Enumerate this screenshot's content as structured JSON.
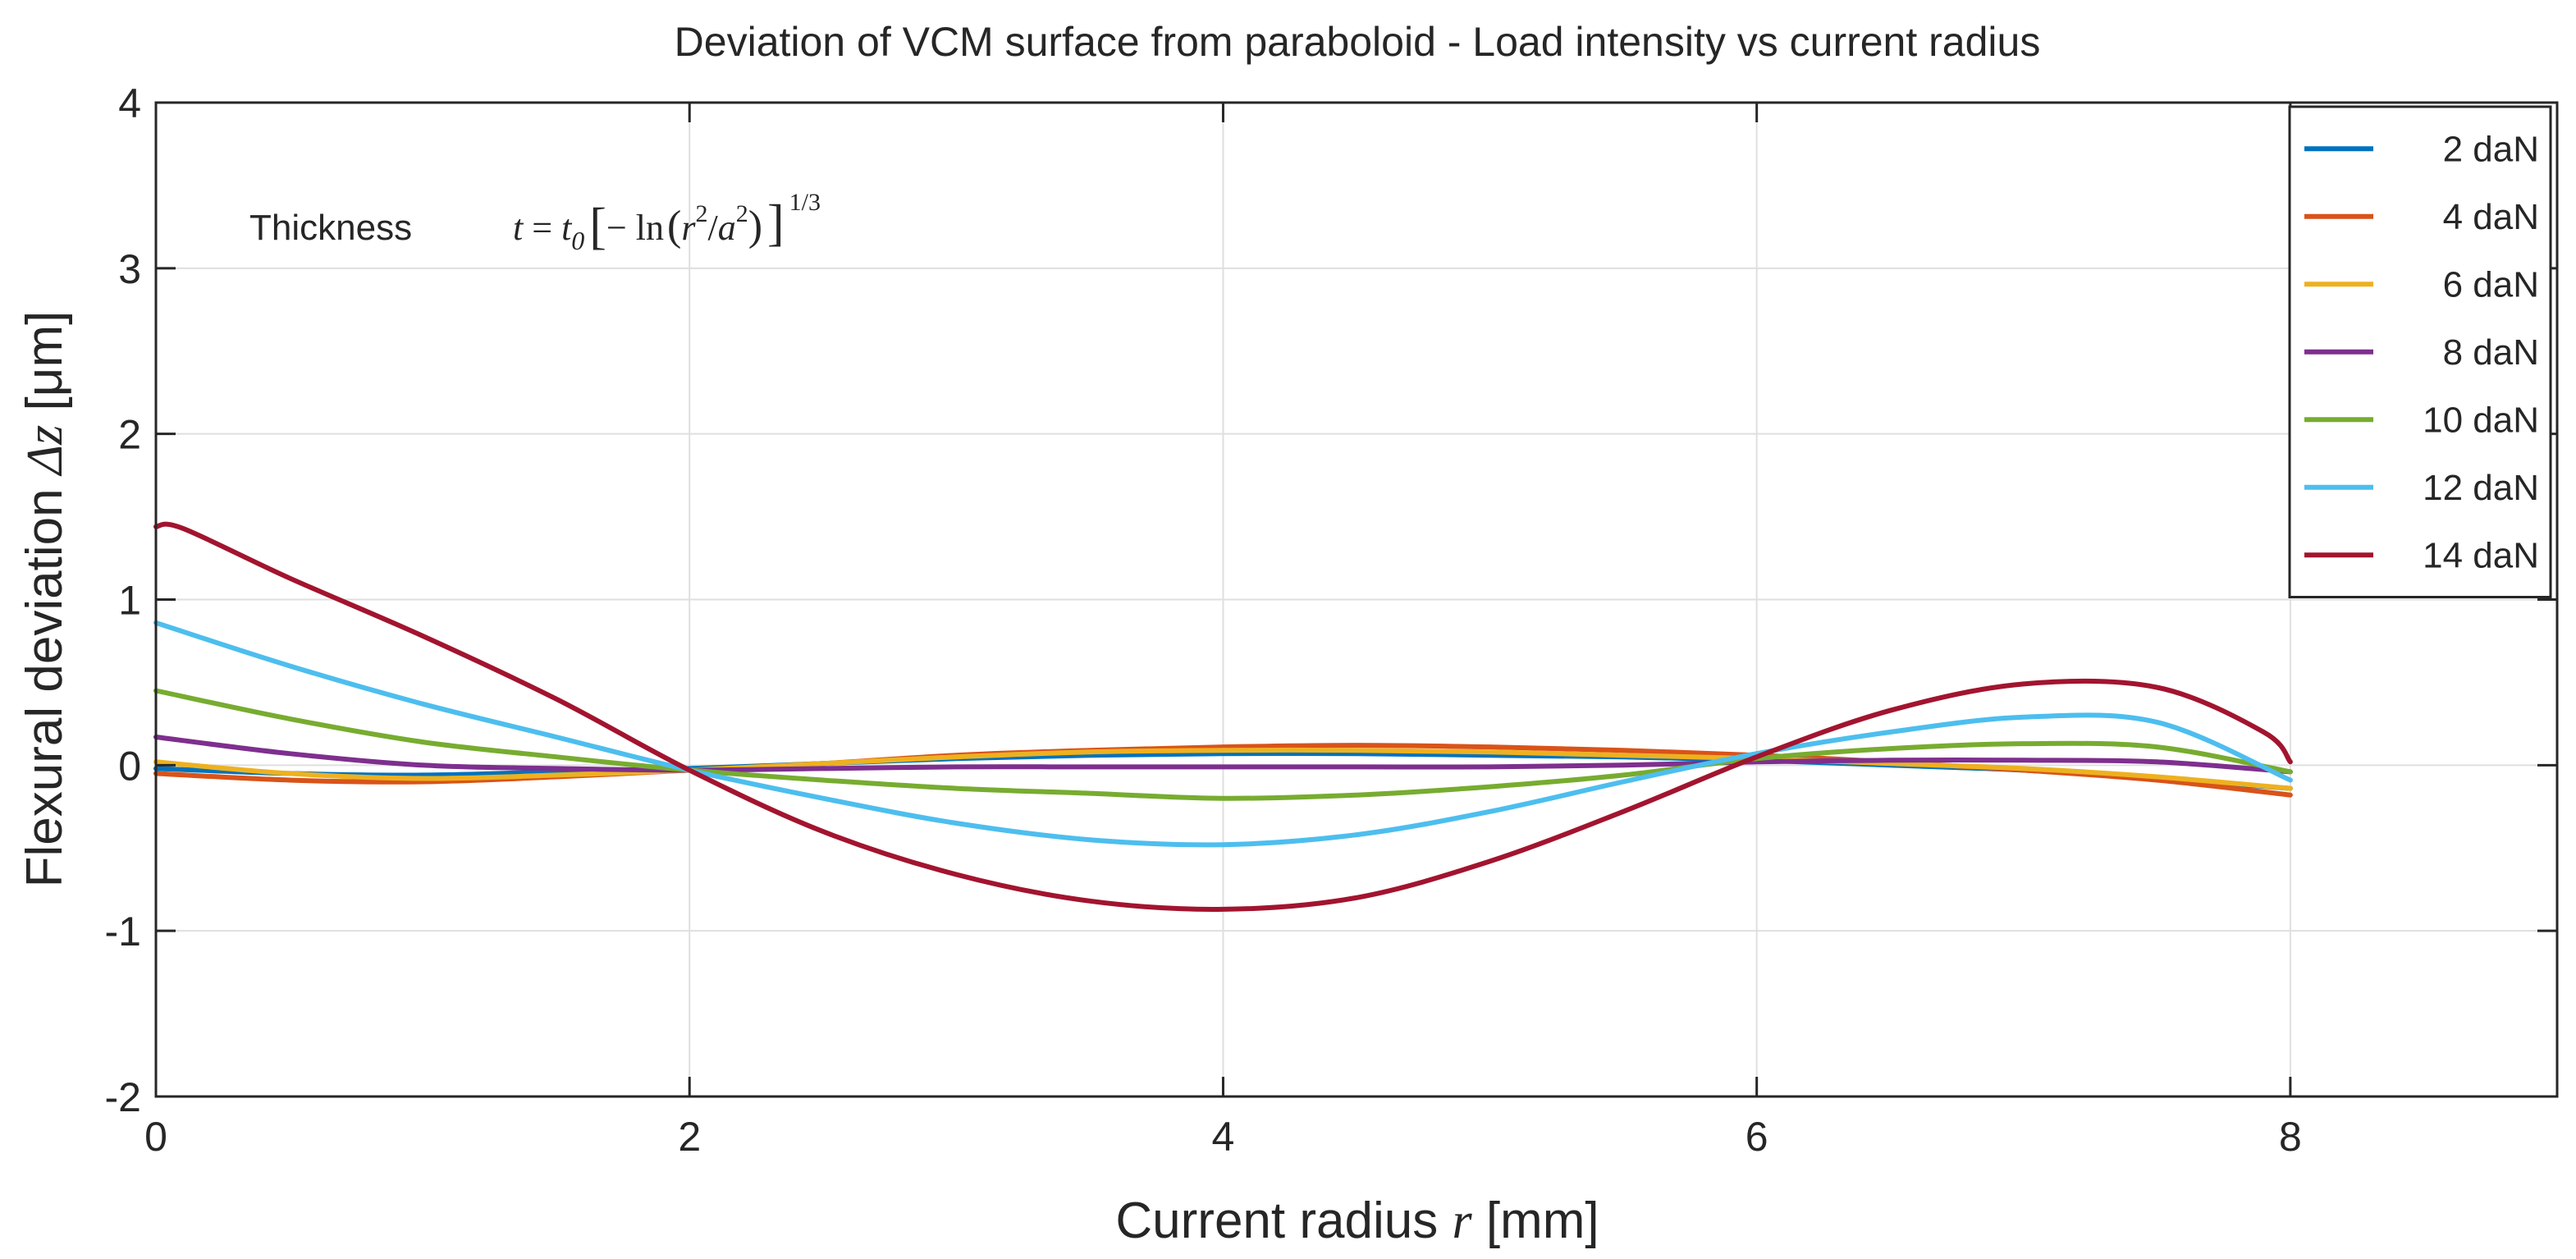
{
  "chart_data": {
    "type": "line",
    "title": "Deviation of VCM surface from paraboloid  -  Load intensity vs current radius",
    "xlabel": {
      "text": "Current radius ",
      "var": "r",
      "unit": " [mm]"
    },
    "ylabel": {
      "text": "Flexural deviation ",
      "var": "Δz",
      "unit": " [μm]"
    },
    "xlim": [
      0,
      9
    ],
    "ylim": [
      -2,
      4
    ],
    "xticks": [
      0,
      2,
      4,
      6,
      8
    ],
    "yticks": [
      -2,
      -1,
      0,
      1,
      2,
      3,
      4
    ],
    "grid": true,
    "legend_position": "top-right",
    "annotation": {
      "label": "Thickness",
      "t": "t",
      "eq": " = ",
      "t0": "t",
      "sub0": "0",
      "minus_ln": "− ln",
      "r": "r",
      "sup2a": "2",
      "slash": "/",
      "a": "a",
      "sup2b": "2",
      "exp": "1/3"
    },
    "series": [
      {
        "name": "2 daN",
        "color": "#0072BD",
        "x": [
          0,
          0.5,
          1,
          1.5,
          2,
          2.5,
          3,
          3.5,
          4,
          4.5,
          5,
          5.5,
          6,
          6.5,
          7,
          7.5,
          8
        ],
        "y": [
          -0.02,
          -0.05,
          -0.06,
          -0.04,
          -0.02,
          0.01,
          0.04,
          0.06,
          0.07,
          0.07,
          0.06,
          0.05,
          0.03,
          0.0,
          -0.03,
          -0.08,
          -0.14
        ]
      },
      {
        "name": "4 daN",
        "color": "#D95319",
        "x": [
          0,
          0.5,
          1,
          1.5,
          2,
          2.5,
          3,
          3.5,
          4,
          4.5,
          5,
          5.5,
          6,
          6.5,
          7,
          7.5,
          8
        ],
        "y": [
          -0.05,
          -0.09,
          -0.1,
          -0.07,
          -0.03,
          0.01,
          0.06,
          0.09,
          0.11,
          0.12,
          0.11,
          0.09,
          0.06,
          0.02,
          -0.03,
          -0.09,
          -0.18
        ]
      },
      {
        "name": "6 daN",
        "color": "#EDB120",
        "x": [
          0,
          0.5,
          1,
          1.5,
          2,
          2.5,
          3,
          3.5,
          4,
          4.5,
          5,
          5.5,
          6,
          6.5,
          7,
          7.5,
          8
        ],
        "y": [
          0.02,
          -0.05,
          -0.08,
          -0.06,
          -0.03,
          0.01,
          0.05,
          0.08,
          0.09,
          0.09,
          0.08,
          0.06,
          0.04,
          0.01,
          -0.02,
          -0.07,
          -0.14
        ]
      },
      {
        "name": "8 daN",
        "color": "#7E2F8E",
        "x": [
          0,
          0.5,
          1,
          1.5,
          2,
          2.5,
          3,
          3.5,
          4,
          4.5,
          5,
          5.5,
          6,
          6.5,
          7,
          7.5,
          8
        ],
        "y": [
          0.17,
          0.07,
          0.0,
          -0.02,
          -0.03,
          -0.02,
          -0.01,
          -0.01,
          -0.01,
          -0.01,
          -0.01,
          0.0,
          0.02,
          0.03,
          0.03,
          0.02,
          -0.04
        ]
      },
      {
        "name": "10 daN",
        "color": "#77AC30",
        "x": [
          0,
          0.5,
          1,
          1.5,
          2,
          2.5,
          3,
          3.5,
          4,
          4.5,
          5,
          5.5,
          6,
          6.5,
          7,
          7.5,
          8
        ],
        "y": [
          0.45,
          0.28,
          0.14,
          0.05,
          -0.03,
          -0.09,
          -0.14,
          -0.17,
          -0.2,
          -0.18,
          -0.13,
          -0.06,
          0.04,
          0.1,
          0.13,
          0.11,
          -0.04
        ]
      },
      {
        "name": "12 daN",
        "color": "#4DBEEE",
        "x": [
          0,
          0.5,
          1,
          1.5,
          2,
          2.5,
          3,
          3.5,
          4,
          4.5,
          5,
          5.5,
          6,
          6.5,
          7,
          7.5,
          8
        ],
        "y": [
          0.86,
          0.6,
          0.37,
          0.17,
          -0.03,
          -0.2,
          -0.35,
          -0.45,
          -0.48,
          -0.42,
          -0.28,
          -0.1,
          0.07,
          0.2,
          0.29,
          0.26,
          -0.09
        ]
      },
      {
        "name": "14 daN",
        "color": "#A2142F",
        "x": [
          0,
          0.1,
          0.5,
          1,
          1.5,
          2,
          2.5,
          3,
          3.5,
          4,
          4.5,
          5,
          5.5,
          6,
          6.5,
          7,
          7.5,
          7.9,
          8
        ],
        "y": [
          1.44,
          1.43,
          1.13,
          0.78,
          0.4,
          -0.03,
          -0.4,
          -0.66,
          -0.82,
          -0.87,
          -0.8,
          -0.58,
          -0.28,
          0.05,
          0.33,
          0.49,
          0.47,
          0.2,
          0.02
        ]
      }
    ]
  }
}
